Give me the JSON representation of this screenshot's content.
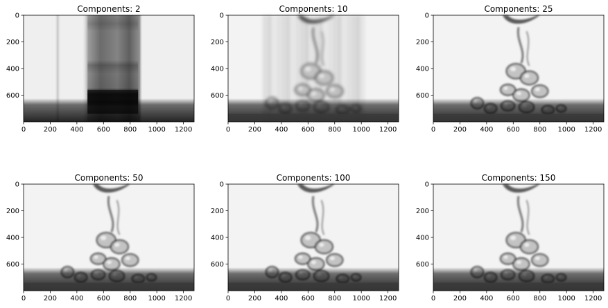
{
  "chart_data": [
    {
      "type": "heatmap",
      "title": "Components: 2",
      "n_components": 2,
      "xticks": [
        0,
        200,
        400,
        600,
        800,
        1000,
        1200
      ],
      "yticks": [
        0,
        200,
        400,
        600
      ],
      "xlim": [
        0,
        1280
      ],
      "ylim": [
        800,
        0
      ],
      "colormap": "gray"
    },
    {
      "type": "heatmap",
      "title": "Components: 10",
      "n_components": 10,
      "xticks": [
        0,
        200,
        400,
        600,
        800,
        1000,
        1200
      ],
      "yticks": [
        0,
        200,
        400,
        600
      ],
      "xlim": [
        0,
        1280
      ],
      "ylim": [
        800,
        0
      ],
      "colormap": "gray"
    },
    {
      "type": "heatmap",
      "title": "Components: 25",
      "n_components": 25,
      "xticks": [
        0,
        200,
        400,
        600,
        800,
        1000,
        1200
      ],
      "yticks": [
        0,
        200,
        400,
        600
      ],
      "xlim": [
        0,
        1280
      ],
      "ylim": [
        800,
        0
      ],
      "colormap": "gray"
    },
    {
      "type": "heatmap",
      "title": "Components: 50",
      "n_components": 50,
      "xticks": [
        0,
        200,
        400,
        600,
        800,
        1000,
        1200
      ],
      "yticks": [
        0,
        200,
        400,
        600
      ],
      "xlim": [
        0,
        1280
      ],
      "ylim": [
        800,
        0
      ],
      "colormap": "gray"
    },
    {
      "type": "heatmap",
      "title": "Components: 100",
      "n_components": 100,
      "xticks": [
        0,
        200,
        400,
        600,
        800,
        1000,
        1200
      ],
      "yticks": [
        0,
        200,
        400,
        600
      ],
      "xlim": [
        0,
        1280
      ],
      "ylim": [
        800,
        0
      ],
      "colormap": "gray"
    },
    {
      "type": "heatmap",
      "title": "Components: 150",
      "n_components": 150,
      "xticks": [
        0,
        200,
        400,
        600,
        800,
        1000,
        1200
      ],
      "yticks": [
        0,
        200,
        400,
        600
      ],
      "xlim": [
        0,
        1280
      ],
      "ylim": [
        800,
        0
      ],
      "colormap": "gray"
    }
  ]
}
